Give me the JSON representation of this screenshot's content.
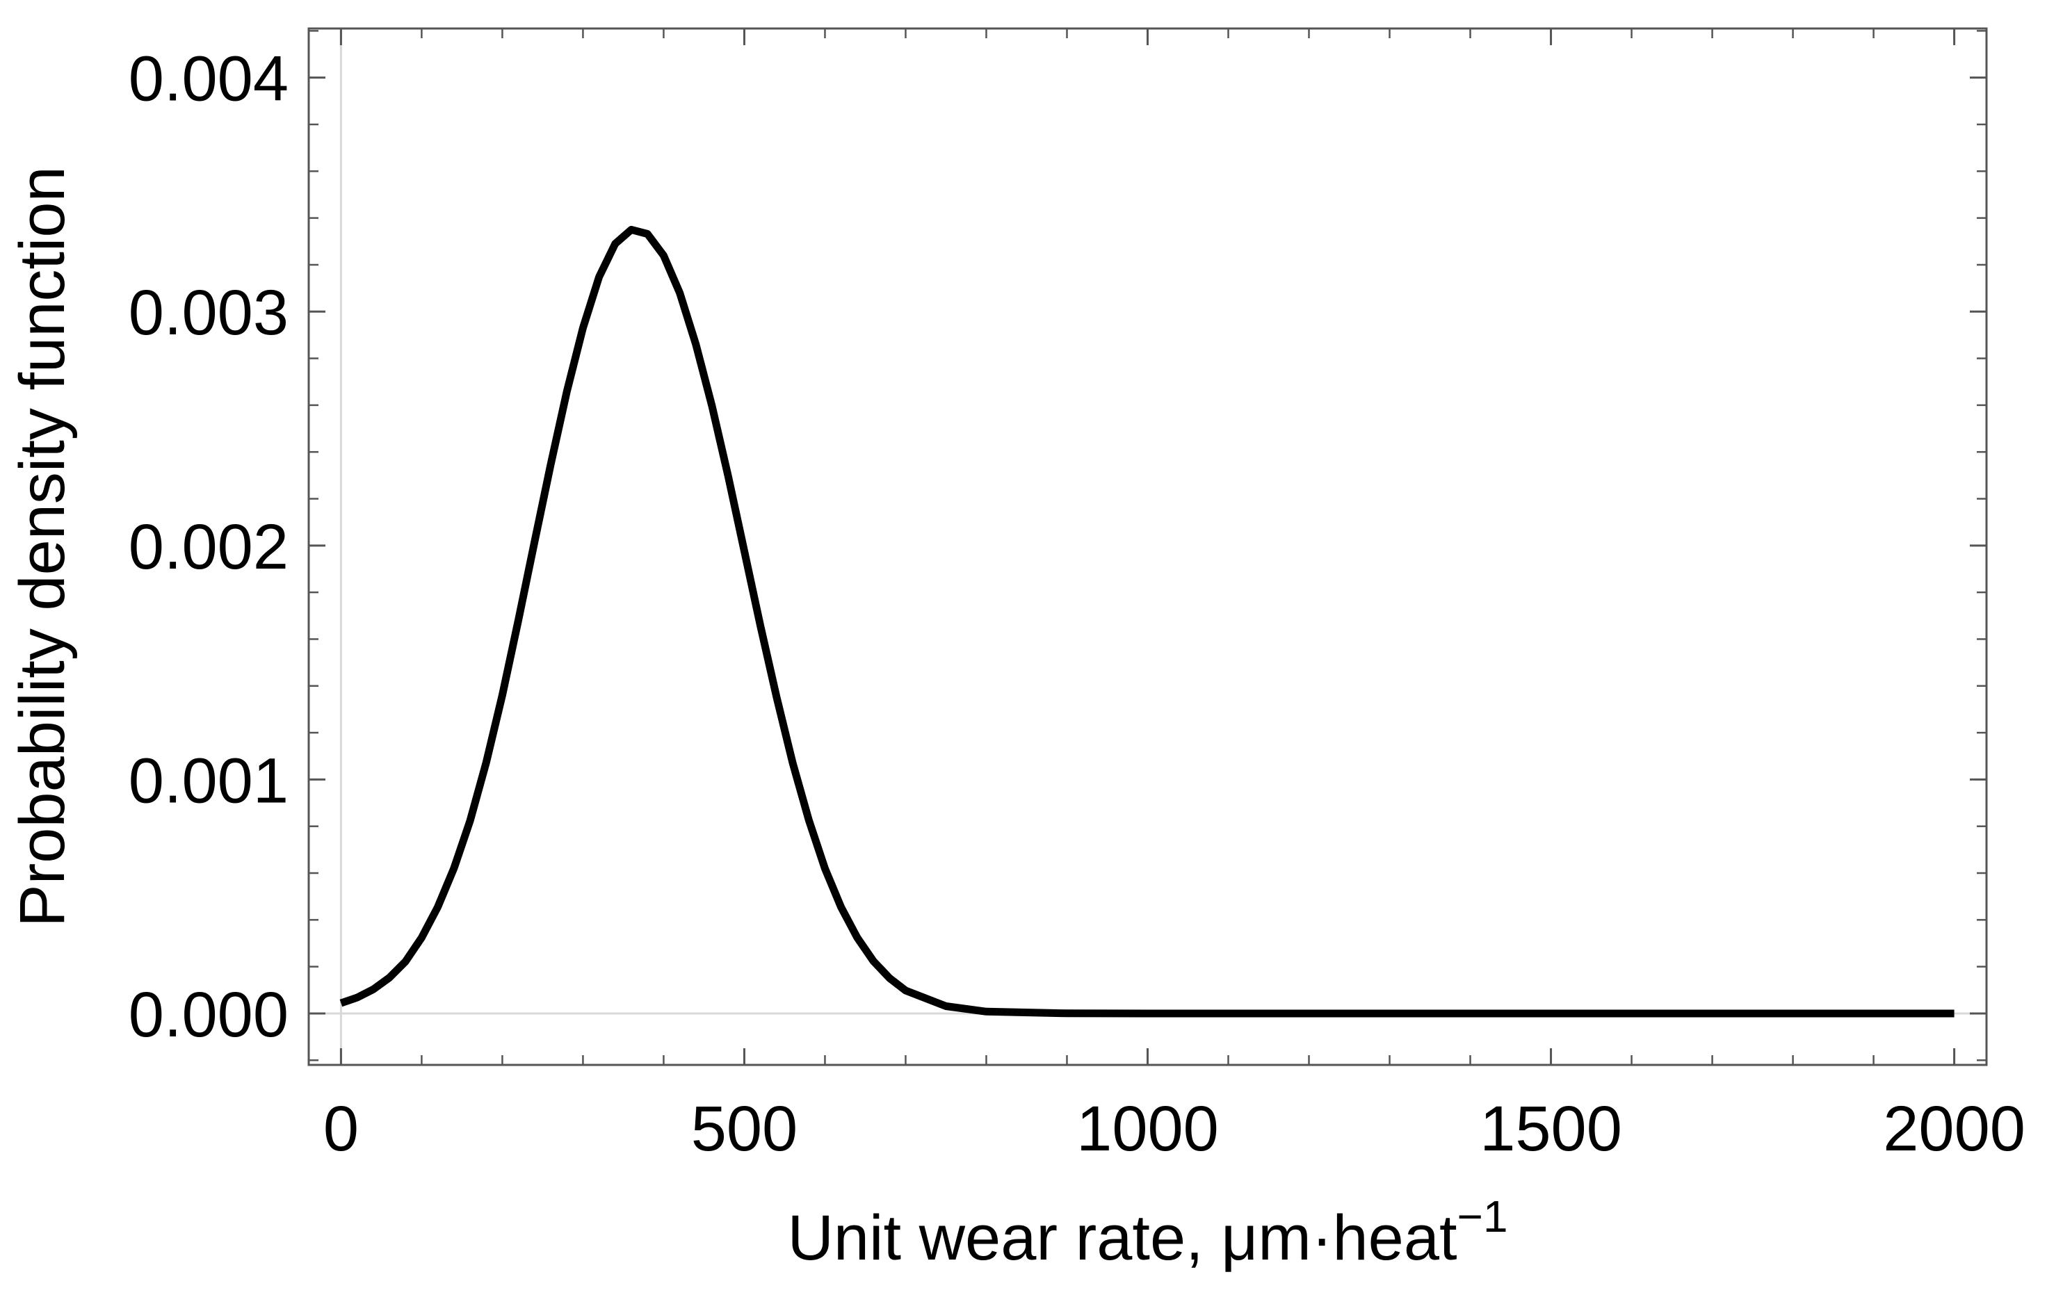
{
  "chart_data": {
    "type": "line",
    "title": "",
    "xlabel": "Unit wear rate, μm·heat",
    "xlabel_superscript": "−1",
    "ylabel": "Probability density function",
    "xlim": [
      -40,
      2040
    ],
    "ylim": [
      -0.00022,
      0.00421
    ],
    "x_ticks": [
      {
        "value": 0,
        "label": "0"
      },
      {
        "value": 500,
        "label": "500"
      },
      {
        "value": 1000,
        "label": "1000"
      },
      {
        "value": 1500,
        "label": "1500"
      },
      {
        "value": 2000,
        "label": "2000"
      }
    ],
    "y_ticks": [
      {
        "value": 0,
        "label": "0.000"
      },
      {
        "value": 0.001,
        "label": "0.001"
      },
      {
        "value": 0.002,
        "label": "0.002"
      },
      {
        "value": 0.003,
        "label": "0.003"
      },
      {
        "value": 0.004,
        "label": "0.004"
      }
    ],
    "x_minor_step": 100,
    "y_minor_step": 0.0002,
    "grid": false,
    "zero_axes": true,
    "series": [
      {
        "color": "#000000",
        "x": [
          0,
          20,
          40,
          60,
          80,
          100,
          120,
          140,
          160,
          180,
          200,
          220,
          240,
          260,
          280,
          300,
          320,
          340,
          360,
          380,
          400,
          420,
          440,
          460,
          480,
          500,
          520,
          540,
          560,
          580,
          600,
          620,
          640,
          660,
          680,
          700,
          750,
          800,
          900,
          1000,
          1200,
          1400,
          1600,
          1800,
          2000
        ],
        "y": [
          4.4e-05,
          6.8e-05,
          0.000103,
          0.000153,
          0.000222,
          0.000324,
          0.000455,
          0.00062,
          0.000823,
          0.001072,
          0.00136,
          0.001682,
          0.002016,
          0.002346,
          0.002658,
          0.00293,
          0.003148,
          0.00329,
          0.00335,
          0.003332,
          0.00324,
          0.00308,
          0.00286,
          0.002596,
          0.002296,
          0.001976,
          0.001656,
          0.001352,
          0.00107,
          0.000826,
          0.000619,
          0.000454,
          0.000324,
          0.000224,
          0.000151,
          9.8e-05,
          3.1e-05,
          8e-06,
          4e-07,
          0.0,
          0.0,
          0.0,
          0.0,
          0.0,
          0.0
        ]
      }
    ]
  }
}
